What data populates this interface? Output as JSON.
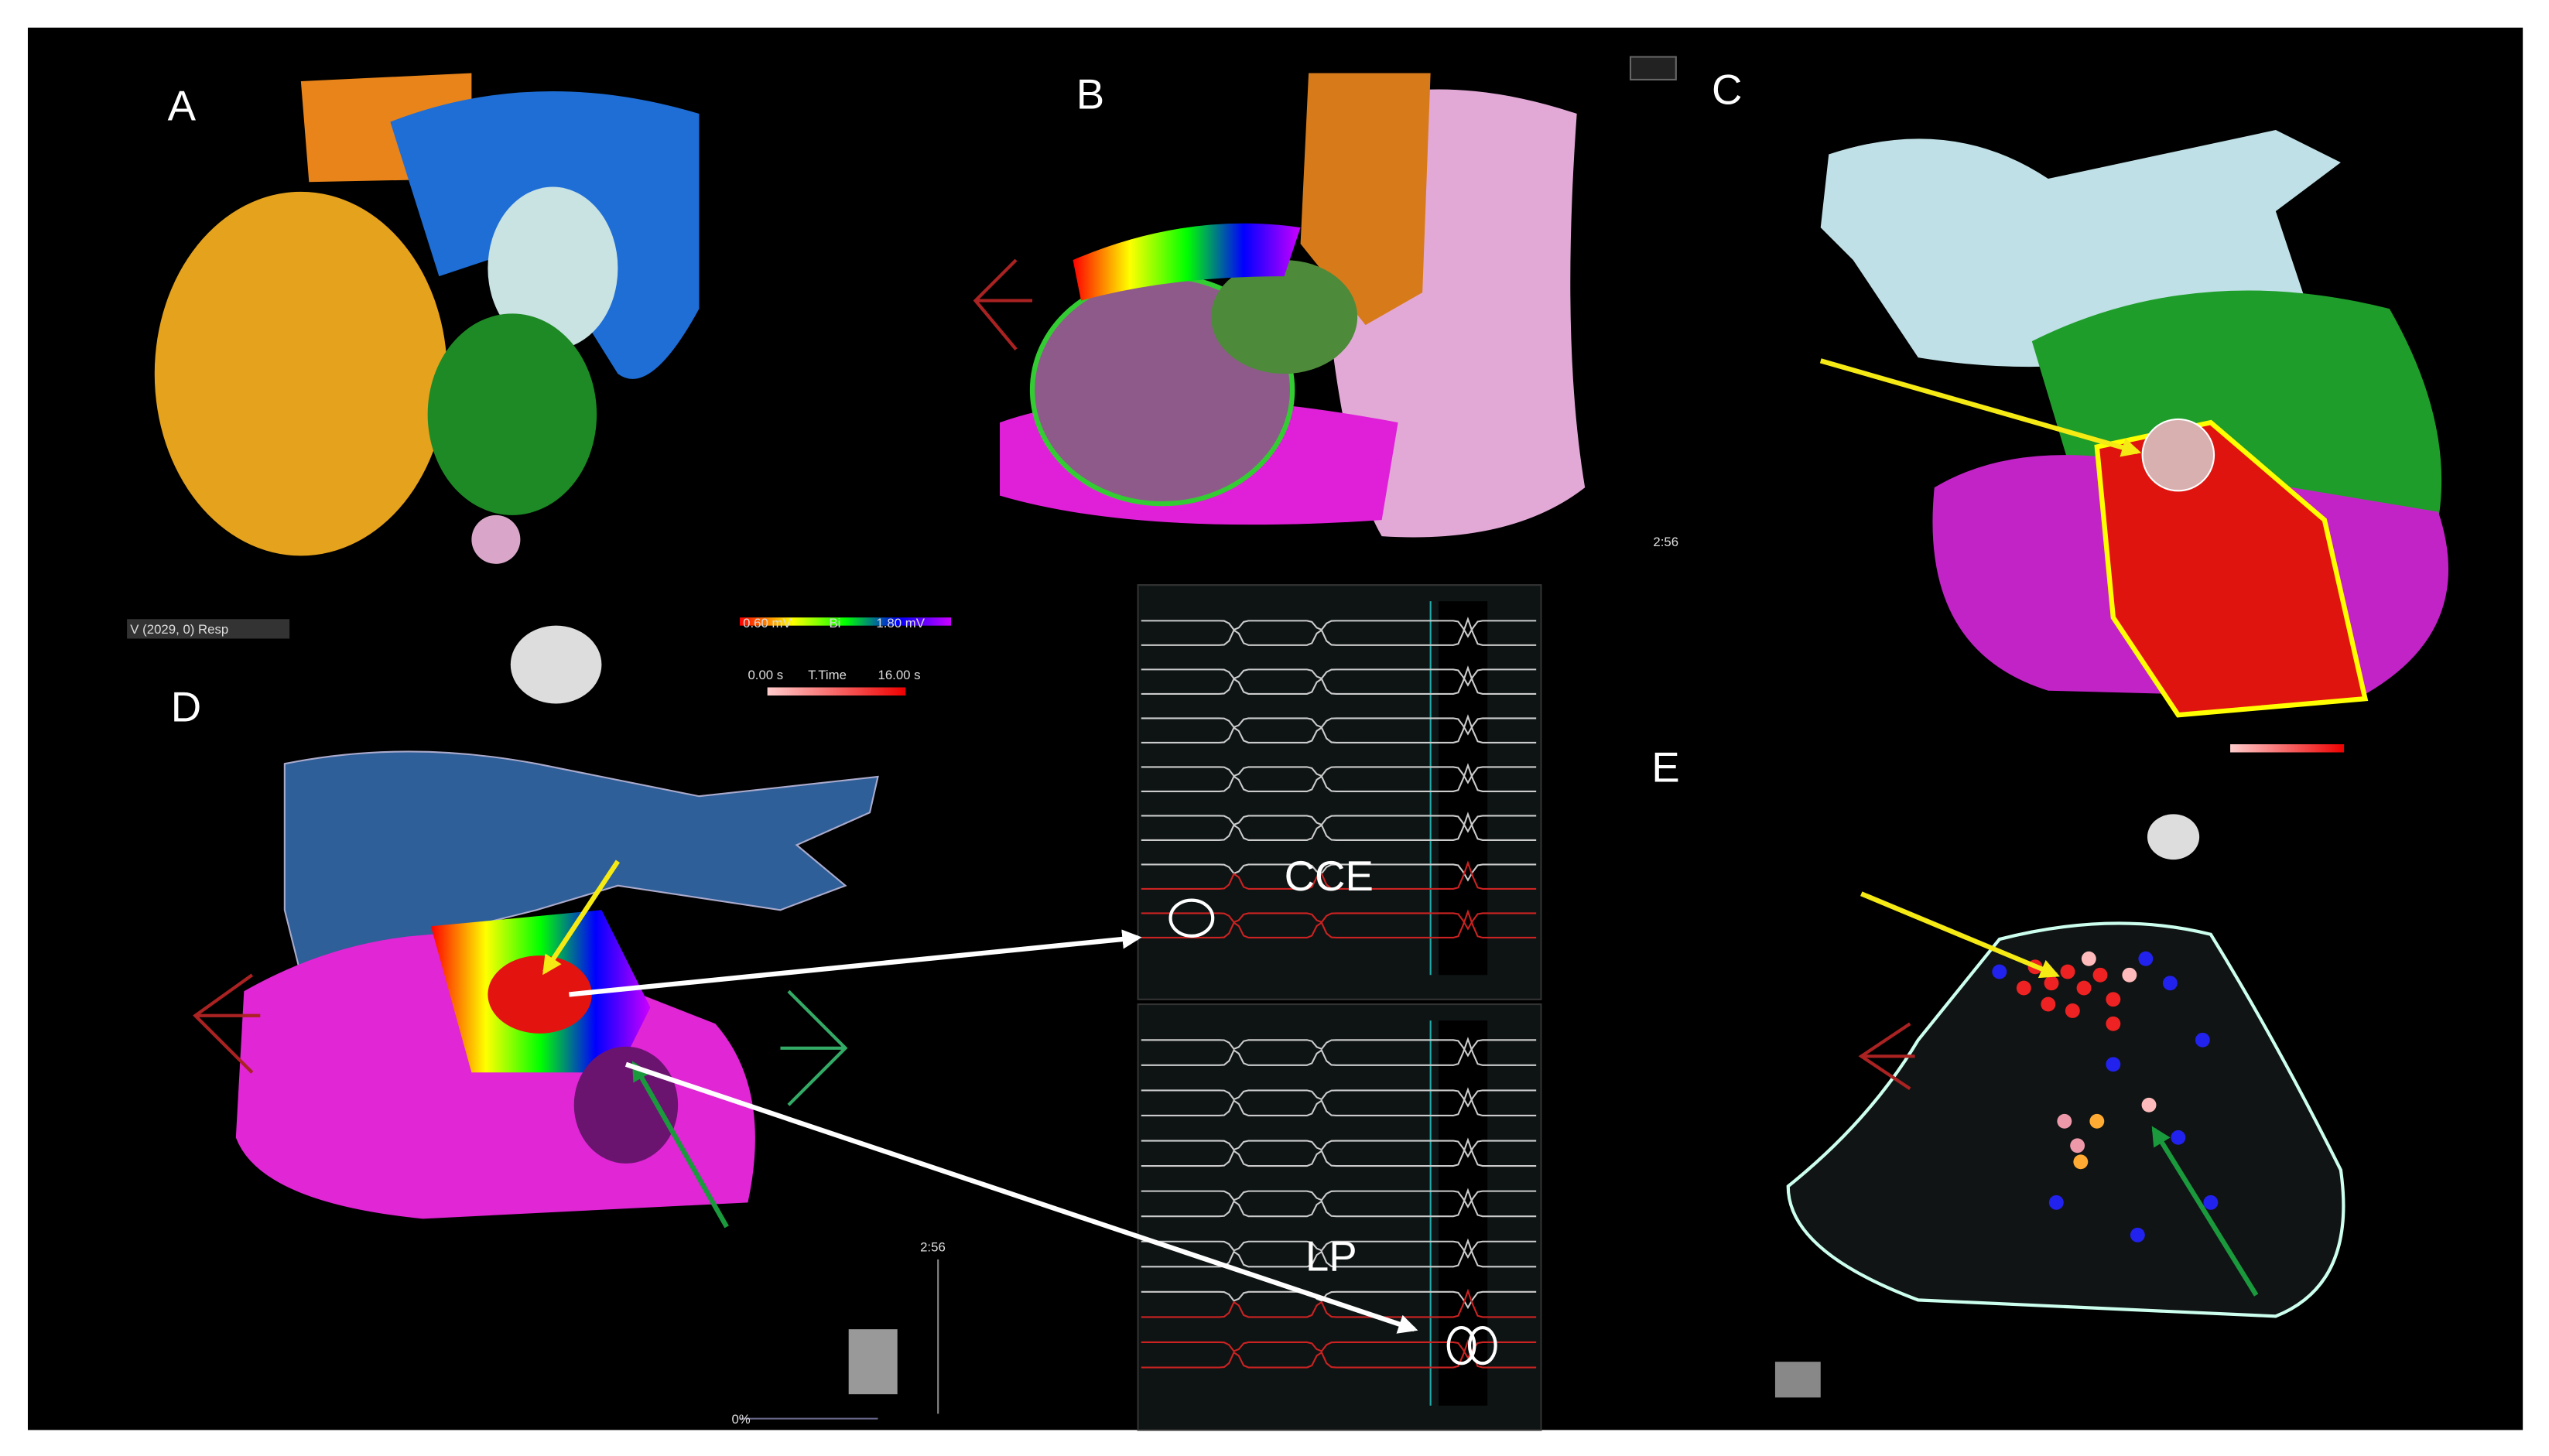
{
  "panels": {
    "labels": [
      "A",
      "B",
      "C",
      "D",
      "E"
    ]
  },
  "traces": {
    "top_label": "CCE",
    "bottom_label": "LP"
  },
  "ui": {
    "legend_bi_min": "0.60 mV",
    "legend_bi_name": "Bi",
    "legend_bi_max": "1.80 mV",
    "legend_time_min": "0.00 s",
    "legend_time_name": "T.Time",
    "legend_time_max": "16.00 s",
    "resp_label": "V (2029, 0) Resp",
    "timer_c": "2:56",
    "timer_d": "2:56",
    "zoom_label": "0%"
  }
}
